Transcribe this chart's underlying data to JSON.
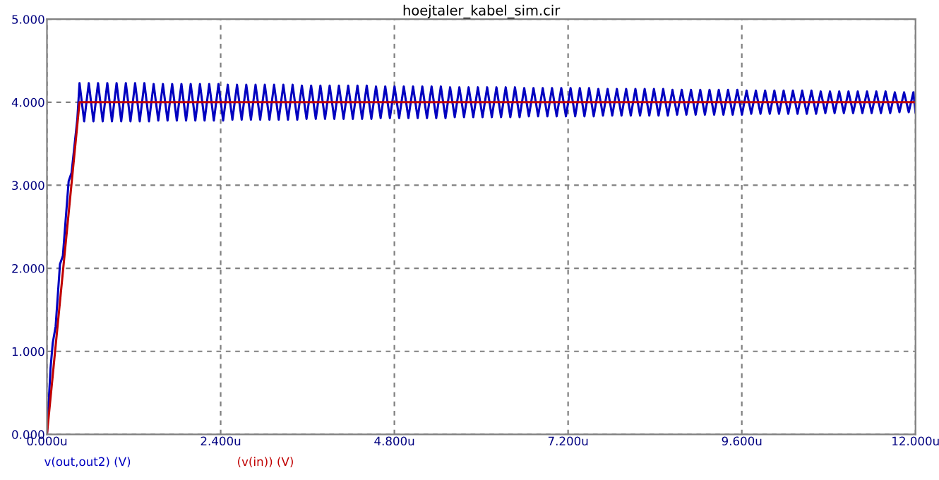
{
  "chart_data": {
    "type": "line",
    "title": "hoejtaler_kabel_sim.cir",
    "xlim": [
      0,
      12
    ],
    "ylim": [
      0,
      5
    ],
    "xticks": [
      {
        "value": 0,
        "label": "0.000u"
      },
      {
        "value": 2.4,
        "label": "2.400u"
      },
      {
        "value": 4.8,
        "label": "4.800u"
      },
      {
        "value": 7.2,
        "label": "7.200u"
      },
      {
        "value": 9.6,
        "label": "9.600u"
      },
      {
        "value": 12,
        "label": "12.000u"
      }
    ],
    "yticks": [
      {
        "value": 0,
        "label": "0.000"
      },
      {
        "value": 1,
        "label": "1.000"
      },
      {
        "value": 2,
        "label": "2.000"
      },
      {
        "value": 3,
        "label": "3.000"
      },
      {
        "value": 4,
        "label": "4.000"
      },
      {
        "value": 5,
        "label": "5.000"
      }
    ],
    "grid": true,
    "legend": "bottom",
    "line_style": "solid",
    "marker": "none",
    "series": [
      {
        "name": "v(out,out2) (V)",
        "color": "#0000c0",
        "x": [
          0,
          0.05,
          0.08,
          0.12,
          0.18,
          0.22,
          0.3,
          0.34,
          0.42,
          0.45,
          0.514,
          0.578,
          0.642,
          0.706,
          0.77,
          0.834,
          0.898,
          0.962,
          1.026,
          1.09,
          1.154,
          1.218,
          1.282,
          1.346,
          1.41,
          1.474,
          1.538,
          1.602,
          1.666,
          1.73,
          1.794,
          1.858,
          1.922,
          1.986,
          2.05,
          2.114,
          2.178,
          2.242,
          2.306,
          2.37,
          2.434,
          2.498,
          2.562,
          2.626,
          2.69,
          2.754,
          2.818,
          2.882,
          2.946,
          3.01,
          3.074,
          3.138,
          3.202,
          3.266,
          3.33,
          3.394,
          3.458,
          3.522,
          3.586,
          3.65,
          3.714,
          3.778,
          3.842,
          3.906,
          3.97,
          4.034,
          4.098,
          4.162,
          4.226,
          4.29,
          4.354,
          4.418,
          4.482,
          4.546,
          4.61,
          4.674,
          4.738,
          4.802,
          4.866,
          4.93,
          4.994,
          5.058,
          5.122,
          5.186,
          5.25,
          5.314,
          5.378,
          5.442,
          5.506,
          5.57,
          5.634,
          5.698,
          5.762,
          5.826,
          5.89,
          5.954,
          6.018,
          6.082,
          6.146,
          6.21,
          6.274,
          6.338,
          6.402,
          6.466,
          6.53,
          6.594,
          6.658,
          6.722,
          6.786,
          6.85,
          6.914,
          6.978,
          7.042,
          7.106,
          7.17,
          7.234,
          7.298,
          7.362,
          7.426,
          7.49,
          7.554,
          7.618,
          7.682,
          7.746,
          7.81,
          7.874,
          7.938,
          8.002,
          8.066,
          8.13,
          8.194,
          8.258,
          8.322,
          8.386,
          8.45,
          8.514,
          8.578,
          8.642,
          8.706,
          8.77,
          8.834,
          8.898,
          8.962,
          9.026,
          9.09,
          9.154,
          9.218,
          9.282,
          9.346,
          9.41,
          9.474,
          9.538,
          9.602,
          9.666,
          9.73,
          9.794,
          9.858,
          9.922,
          9.986,
          10.05,
          10.114,
          10.178,
          10.242,
          10.306,
          10.37,
          10.434,
          10.498,
          10.562,
          10.626,
          10.69,
          10.754,
          10.818,
          10.882,
          10.946,
          11.01,
          11.074,
          11.138,
          11.202,
          11.266,
          11.33,
          11.394,
          11.458,
          11.522,
          11.586,
          11.65,
          11.714,
          11.778,
          11.842,
          11.906,
          11.97,
          12.0
        ],
        "values": [
          0,
          0.8,
          1.1,
          1.3,
          2.05,
          2.15,
          3.05,
          3.15,
          3.8,
          4.23,
          3.77,
          4.23,
          3.77,
          4.23,
          3.77,
          4.23,
          3.77,
          4.23,
          3.77,
          4.23,
          3.77,
          4.23,
          3.77,
          4.23,
          3.77,
          4.22,
          3.78,
          4.22,
          3.78,
          4.22,
          3.78,
          4.22,
          3.78,
          4.22,
          3.78,
          4.22,
          3.78,
          4.22,
          3.78,
          4.22,
          3.78,
          4.21,
          3.79,
          4.21,
          3.79,
          4.21,
          3.79,
          4.21,
          3.79,
          4.21,
          3.79,
          4.21,
          3.79,
          4.21,
          3.79,
          4.21,
          3.79,
          4.2,
          3.8,
          4.2,
          3.8,
          4.2,
          3.8,
          4.2,
          3.8,
          4.2,
          3.8,
          4.2,
          3.8,
          4.2,
          3.8,
          4.2,
          3.8,
          4.19,
          3.81,
          4.19,
          3.81,
          4.19,
          3.81,
          4.19,
          3.81,
          4.19,
          3.81,
          4.19,
          3.81,
          4.19,
          3.81,
          4.19,
          3.81,
          4.18,
          3.82,
          4.18,
          3.82,
          4.18,
          3.82,
          4.18,
          3.82,
          4.18,
          3.82,
          4.18,
          3.82,
          4.18,
          3.82,
          4.18,
          3.82,
          4.17,
          3.83,
          4.17,
          3.83,
          4.17,
          3.83,
          4.17,
          3.83,
          4.17,
          3.83,
          4.17,
          3.83,
          4.17,
          3.83,
          4.17,
          3.83,
          4.16,
          3.84,
          4.16,
          3.84,
          4.16,
          3.84,
          4.16,
          3.84,
          4.16,
          3.84,
          4.16,
          3.84,
          4.16,
          3.84,
          4.16,
          3.84,
          4.15,
          3.85,
          4.15,
          3.85,
          4.15,
          3.85,
          4.15,
          3.85,
          4.15,
          3.85,
          4.15,
          3.85,
          4.15,
          3.85,
          4.15,
          3.85,
          4.14,
          3.86,
          4.14,
          3.86,
          4.14,
          3.86,
          4.14,
          3.86,
          4.14,
          3.86,
          4.14,
          3.86,
          4.14,
          3.86,
          4.14,
          3.86,
          4.13,
          3.87,
          4.13,
          3.87,
          4.13,
          3.87,
          4.13,
          3.87,
          4.13,
          3.87,
          4.13,
          3.87,
          4.13,
          3.87,
          4.13,
          3.87,
          4.12,
          3.88,
          4.12,
          3.88,
          4.12,
          3.88
        ]
      },
      {
        "name": "(v(in)) (V)",
        "color": "#c00000",
        "x": [
          0,
          0.45,
          12
        ],
        "values": [
          0,
          4,
          4
        ]
      }
    ]
  }
}
